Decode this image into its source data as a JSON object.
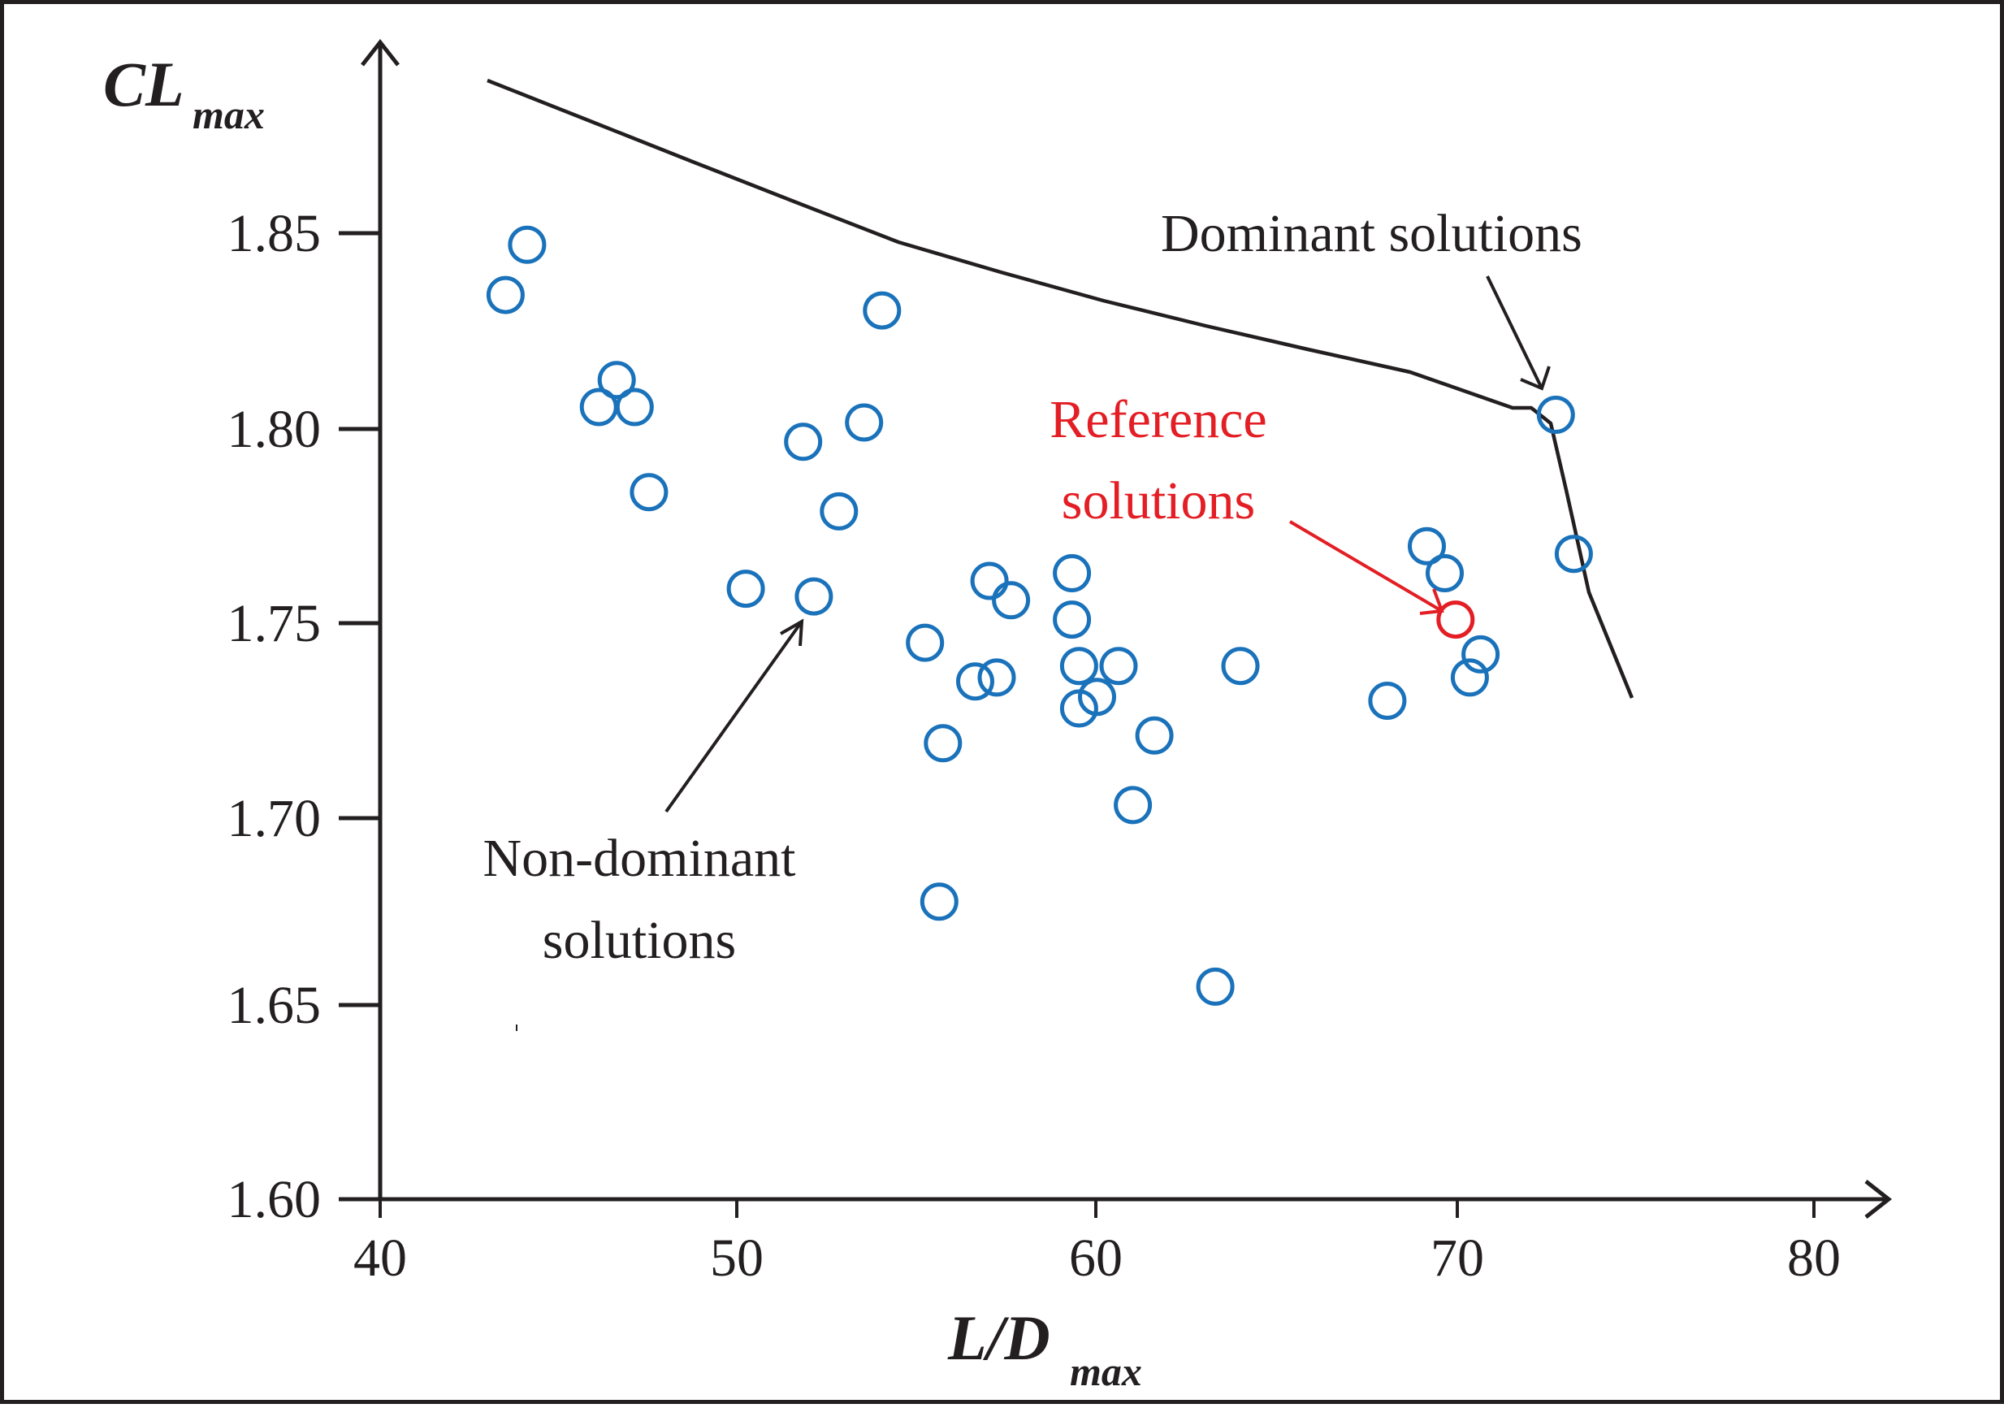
{
  "chart_data": {
    "type": "scatter",
    "title": "",
    "xlabel": "L/D",
    "xlabel_subscript": "max",
    "ylabel": "CL",
    "ylabel_subscript": "max",
    "xlim": [
      40,
      82
    ],
    "ylim": [
      1.6,
      1.89
    ],
    "xticks": [
      "40",
      "50",
      "60",
      "70",
      "80"
    ],
    "yticks": [
      "1.60",
      "1.65",
      "1.70",
      "1.75",
      "1.80",
      "1.85"
    ],
    "grid": false,
    "legend": "none (inline annotations)",
    "series": [
      {
        "name": "Non-dominant solutions",
        "marker": "open-circle",
        "color": "#1a72bb",
        "points": [
          [
            44.1,
            1.847
          ],
          [
            43.5,
            1.834
          ],
          [
            46.6,
            1.812
          ],
          [
            46.1,
            1.805
          ],
          [
            47.1,
            1.805
          ],
          [
            47.5,
            1.783
          ],
          [
            54.0,
            1.83
          ],
          [
            53.5,
            1.801
          ],
          [
            51.8,
            1.796
          ],
          [
            52.8,
            1.778
          ],
          [
            50.2,
            1.758
          ],
          [
            52.1,
            1.756
          ],
          [
            55.2,
            1.744
          ],
          [
            57.0,
            1.76
          ],
          [
            57.6,
            1.755
          ],
          [
            59.3,
            1.762
          ],
          [
            59.3,
            1.75
          ],
          [
            56.6,
            1.734
          ],
          [
            57.2,
            1.735
          ],
          [
            59.5,
            1.738
          ],
          [
            59.5,
            1.727
          ],
          [
            60.0,
            1.73
          ],
          [
            60.6,
            1.738
          ],
          [
            55.7,
            1.718
          ],
          [
            61.6,
            1.72
          ],
          [
            61.0,
            1.702
          ],
          [
            55.6,
            1.677
          ],
          [
            63.3,
            1.655
          ],
          [
            64.0,
            1.738
          ],
          [
            68.1,
            1.729
          ],
          [
            69.2,
            1.769
          ],
          [
            69.7,
            1.762
          ],
          [
            70.4,
            1.735
          ],
          [
            70.7,
            1.741
          ]
        ]
      },
      {
        "name": "Dominant solutions",
        "marker": "open-circle",
        "color": "#1a72bb",
        "points": [
          [
            72.8,
            1.803
          ],
          [
            73.3,
            1.767
          ]
        ]
      },
      {
        "name": "Reference solutions",
        "marker": "open-circle",
        "color": "#e31e24",
        "points": [
          [
            70.0,
            1.75
          ]
        ]
      },
      {
        "name": "Pareto front",
        "type": "line",
        "color": "#231f20",
        "points": [
          [
            43.0,
            1.889
          ],
          [
            45.9,
            1.878
          ],
          [
            48.8,
            1.868
          ],
          [
            51.6,
            1.857
          ],
          [
            54.5,
            1.847
          ],
          [
            57.3,
            1.839
          ],
          [
            60.2,
            1.832
          ],
          [
            63.0,
            1.825
          ],
          [
            65.9,
            1.819
          ],
          [
            68.7,
            1.813
          ],
          [
            71.6,
            1.804
          ],
          [
            72.1,
            1.804
          ],
          [
            72.7,
            1.8
          ],
          [
            73.1,
            1.783
          ],
          [
            73.7,
            1.757
          ],
          [
            74.9,
            1.73
          ]
        ]
      }
    ],
    "annotations": [
      {
        "text": "Dominant solutions",
        "color": "#231f20",
        "arrow_to": [
          72.4,
          1.81
        ]
      },
      {
        "text": "Reference solutions",
        "lines": [
          "Reference",
          "solutions"
        ],
        "color": "#e31e24",
        "arrow_to": [
          69.7,
          1.753
        ]
      },
      {
        "text": "Non-dominant solutions",
        "lines": [
          "Non-dominant",
          "solutions"
        ],
        "color": "#231f20",
        "arrow_to": [
          52.0,
          1.753
        ]
      }
    ]
  },
  "labels": {
    "y_axis_main": "CL",
    "y_axis_sub": "max",
    "x_axis_main": "L/D",
    "x_axis_sub": "max",
    "dominant": "Dominant solutions",
    "reference_line1": "Reference",
    "reference_line2": "solutions",
    "nondominant_line1": "Non-dominant",
    "nondominant_line2": "solutions",
    "xticks": [
      "40",
      "50",
      "60",
      "70",
      "80"
    ],
    "yticks": [
      "1.85",
      "1.80",
      "1.75",
      "1.70",
      "1.65",
      "1.60"
    ]
  },
  "colors": {
    "blue": "#1a72bb",
    "red": "#e31e24",
    "ink": "#231f20"
  }
}
